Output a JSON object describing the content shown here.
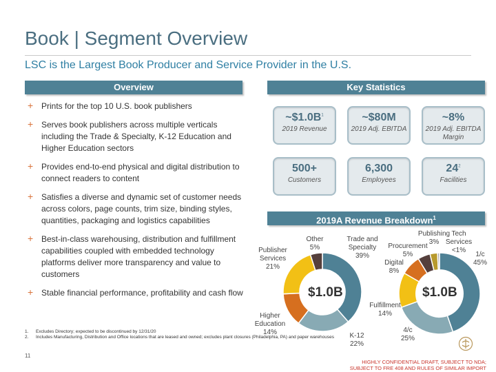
{
  "header": {
    "title": "Book | Segment Overview",
    "subtitle": "LSC is the Largest Book Producer and Service Provider in the U.S."
  },
  "overview": {
    "heading": "Overview",
    "bullets": [
      "Prints for the top 10 U.S. book publishers",
      "Serves book publishers across multiple verticals including the Trade & Specialty, K-12 Education and Higher Education sectors",
      "Provides end-to-end physical and digital distribution to connect readers to content",
      "Satisfies a diverse and dynamic set of customer needs across colors, page counts, trim size, binding styles, quantities, packaging and logistics capabilities",
      "Best-in-class warehousing, distribution and fulfillment capabilities coupled with embedded technology platforms deliver more transparency and value to customers",
      "Stable financial performance, profitability and cash flow"
    ]
  },
  "key_stats": {
    "heading": "Key Statistics",
    "items": [
      {
        "value": "~$1.0B",
        "sup": "1",
        "label": "2019 Revenue"
      },
      {
        "value": "~$80M",
        "sup": "",
        "label": "2019 Adj. EBITDA"
      },
      {
        "value": "~8%",
        "sup": "",
        "label": "2019 Adj. EBITDA Margin"
      },
      {
        "value": "500+",
        "sup": "",
        "label": "Customers"
      },
      {
        "value": "6,300",
        "sup": "",
        "label": "Employees"
      },
      {
        "value": "24",
        "sup": "2",
        "label": "Facilities"
      }
    ]
  },
  "revenue_breakdown": {
    "heading": "2019A Revenue Breakdown",
    "heading_sup": "1"
  },
  "chart_data": [
    {
      "type": "pie",
      "title": "",
      "center_label": "$1.0B",
      "categories": [
        "Trade and Specialty",
        "K-12",
        "Higher Education",
        "Publisher Services",
        "Other"
      ],
      "values": [
        39,
        22,
        14,
        21,
        5
      ],
      "value_labels": [
        "39%",
        "22%",
        "14%",
        "21%",
        "5%"
      ],
      "colors": [
        "#4f8195",
        "#88aab4",
        "#d66f1f",
        "#f2c015",
        "#553f3c"
      ]
    },
    {
      "type": "pie",
      "title": "",
      "center_label": "$1.0B",
      "categories": [
        "1/c",
        "4/c",
        "Fulfillment",
        "Digital",
        "Procurement",
        "Publishing",
        "Tech Services"
      ],
      "values": [
        45,
        25,
        14,
        8,
        5,
        3,
        0.8
      ],
      "value_labels": [
        "45%",
        "25%",
        "14%",
        "8%",
        "5%",
        "3%",
        "<1%"
      ],
      "colors": [
        "#4f8195",
        "#88aab4",
        "#f2c015",
        "#d66f1f",
        "#553f3c",
        "#b89a2d",
        "#a9a9a9"
      ]
    }
  ],
  "footnotes": [
    {
      "n": "1.",
      "text": "Excludes Directory; expected to be discontinued by 12/31/20"
    },
    {
      "n": "2.",
      "text": "Includes Manufacturing, Distribution and Office locations that are leased and owned; excludes plant closures (Philadelphia, PA) and paper warehouses"
    }
  ],
  "page_number": "11",
  "confidential": {
    "line1": "HIGHLY CONFIDENTIAL DRAFT, SUBJECT TO NDA;",
    "line2": "SUBJECT TO FRE 408 AND RULES OF SIMILAR IMPORT"
  }
}
